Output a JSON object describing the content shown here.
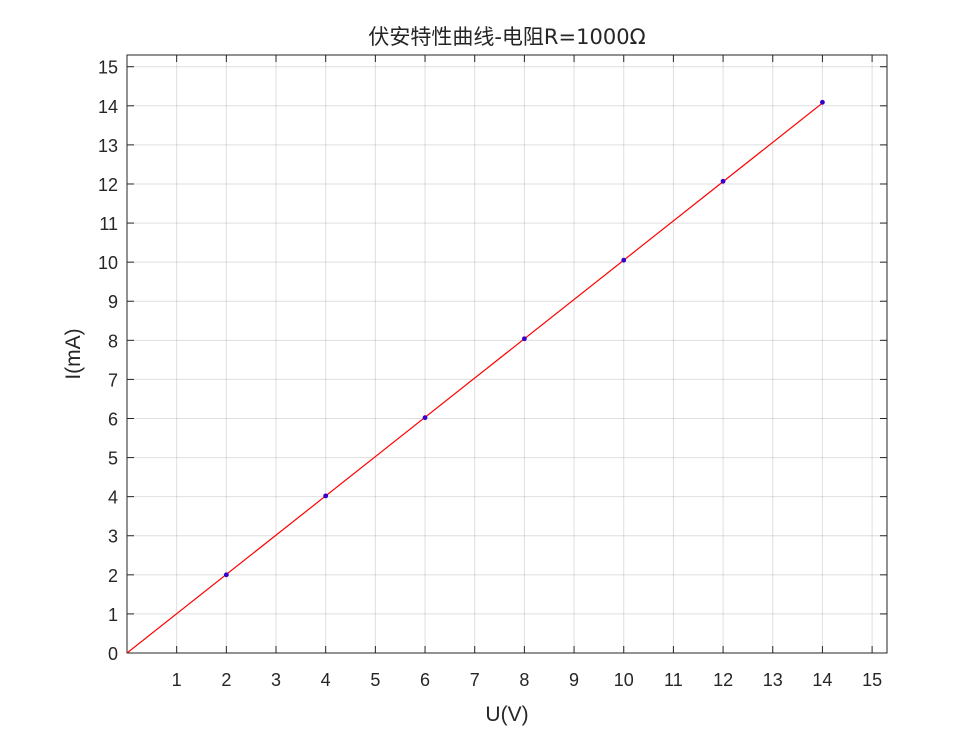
{
  "chart_data": {
    "type": "line",
    "title": "伏安特性曲线-电阻R=1000Ω",
    "xlabel": "U(V)",
    "ylabel": "I(mA)",
    "xlim": [
      0,
      15.3
    ],
    "ylim": [
      0,
      15.3
    ],
    "xticks": [
      1,
      2,
      3,
      4,
      5,
      6,
      7,
      8,
      9,
      10,
      11,
      12,
      13,
      14,
      15
    ],
    "yticks": [
      0,
      1,
      2,
      3,
      4,
      5,
      6,
      7,
      8,
      9,
      10,
      11,
      12,
      13,
      14,
      15
    ],
    "grid": true,
    "series": [
      {
        "kind": "fit-line",
        "color": "#ff0000",
        "x": [
          0,
          14
        ],
        "y": [
          0,
          14.07
        ]
      },
      {
        "kind": "measured-points",
        "color": "#3300cc",
        "x": [
          2,
          4,
          6,
          8,
          10,
          12,
          14
        ],
        "y": [
          2.0,
          4.02,
          6.02,
          8.04,
          10.05,
          12.07,
          14.09
        ]
      }
    ]
  }
}
